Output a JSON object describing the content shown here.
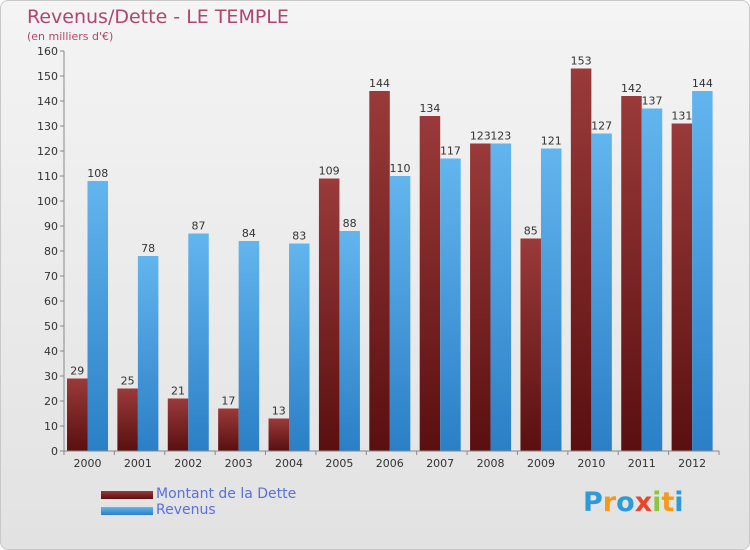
{
  "header": {
    "title": "Revenus/Dette - LE TEMPLE",
    "subtitle": "(en milliers d'€)"
  },
  "colors": {
    "title": "#b0466e",
    "dette_top": "#9a3a3a",
    "dette_bottom": "#5a0f10",
    "revenus_top": "#63b5ee",
    "revenus_bottom": "#2a7fc6",
    "legend_text": "#5a6fe0"
  },
  "chart_data": {
    "type": "bar",
    "categories": [
      "2000",
      "2001",
      "2002",
      "2003",
      "2004",
      "2005",
      "2006",
      "2007",
      "2008",
      "2009",
      "2010",
      "2011",
      "2012"
    ],
    "series": [
      {
        "name": "Montant de la Dette",
        "values": [
          29,
          25,
          21,
          17,
          13,
          109,
          144,
          134,
          123,
          85,
          153,
          142,
          131
        ]
      },
      {
        "name": "Revenus",
        "values": [
          108,
          78,
          87,
          84,
          83,
          88,
          110,
          117,
          123,
          121,
          127,
          137,
          144
        ]
      }
    ],
    "title": "Revenus/Dette - LE TEMPLE",
    "ylabel": "(en milliers d'€)",
    "ylim": [
      0,
      160
    ],
    "yticks": [
      0,
      10,
      20,
      30,
      40,
      50,
      60,
      70,
      80,
      90,
      100,
      110,
      120,
      130,
      140,
      150,
      160
    ],
    "grid": false,
    "legend": "bottom-left"
  },
  "legend": {
    "items": [
      {
        "label": "Montant de la Dette"
      },
      {
        "label": "Revenus"
      }
    ]
  },
  "logo": {
    "letters": [
      {
        "ch": "P",
        "color": "#2f9bd6"
      },
      {
        "ch": "r",
        "color": "#f39a1e"
      },
      {
        "ch": "o",
        "color": "#2f9bd6"
      },
      {
        "ch": "x",
        "color": "#e8452c"
      },
      {
        "ch": "i",
        "color": "#8cc63f"
      },
      {
        "ch": "t",
        "color": "#f39a1e"
      },
      {
        "ch": "i",
        "color": "#2f9bd6"
      }
    ]
  }
}
